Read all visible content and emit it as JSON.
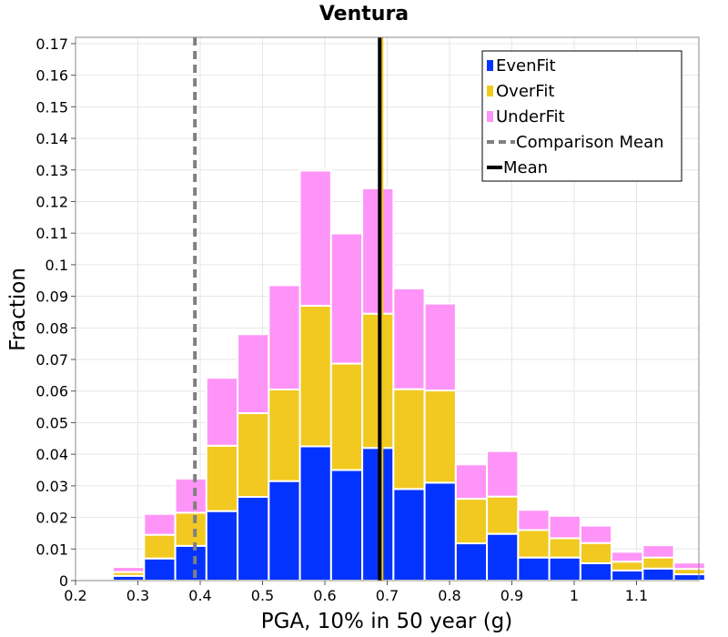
{
  "chart_data": {
    "type": "bar",
    "stacked": true,
    "title": "Ventura",
    "xlabel": "PGA, 10% in 50 year (g)",
    "ylabel": "Fraction",
    "xlim": [
      0.2,
      1.2
    ],
    "ylim": [
      0,
      0.172
    ],
    "grid": true,
    "legend_position": "top-right",
    "x_ticks": [
      "0.2",
      "0.3",
      "0.4",
      "0.5",
      "0.6",
      "0.7",
      "0.8",
      "0.9",
      "1",
      "1.1"
    ],
    "y_ticks": [
      "0",
      "0.01",
      "0.02",
      "0.03",
      "0.04",
      "0.05",
      "0.06",
      "0.07",
      "0.08",
      "0.09",
      "0.1",
      "0.11",
      "0.12",
      "0.13",
      "0.14",
      "0.15",
      "0.16",
      "0.17"
    ],
    "bin_width": 0.05,
    "bin_centers": [
      0.285,
      0.335,
      0.385,
      0.435,
      0.485,
      0.535,
      0.585,
      0.635,
      0.685,
      0.735,
      0.785,
      0.835,
      0.885,
      0.935,
      0.985,
      1.035,
      1.085,
      1.135,
      1.185
    ],
    "series": [
      {
        "name": "EvenFit",
        "color": "#0433ff",
        "values": [
          0.0015,
          0.007,
          0.011,
          0.022,
          0.0265,
          0.0315,
          0.0425,
          0.035,
          0.042,
          0.029,
          0.031,
          0.0118,
          0.0148,
          0.0073,
          0.0073,
          0.0055,
          0.0032,
          0.0038,
          0.002
        ]
      },
      {
        "name": "OverFit",
        "color": "#f2c920",
        "values": [
          0.0012,
          0.0075,
          0.0105,
          0.0207,
          0.0265,
          0.029,
          0.0445,
          0.0337,
          0.0425,
          0.0316,
          0.0292,
          0.0141,
          0.0118,
          0.0087,
          0.0061,
          0.0064,
          0.0028,
          0.0035,
          0.0017
        ]
      },
      {
        "name": "UnderFit",
        "color": "#ff94f8",
        "values": [
          0.0016,
          0.0066,
          0.0108,
          0.0215,
          0.025,
          0.033,
          0.0428,
          0.0412,
          0.0397,
          0.0319,
          0.0275,
          0.0109,
          0.0144,
          0.0064,
          0.0071,
          0.0055,
          0.0031,
          0.0039,
          0.002
        ]
      }
    ],
    "vertical_lines": [
      {
        "name": "Comparison Mean",
        "x": 0.3915,
        "color": "#808080",
        "style": "dashed"
      },
      {
        "name": "Mean",
        "x": 0.688,
        "color": "#000000",
        "style": "solid"
      }
    ]
  }
}
